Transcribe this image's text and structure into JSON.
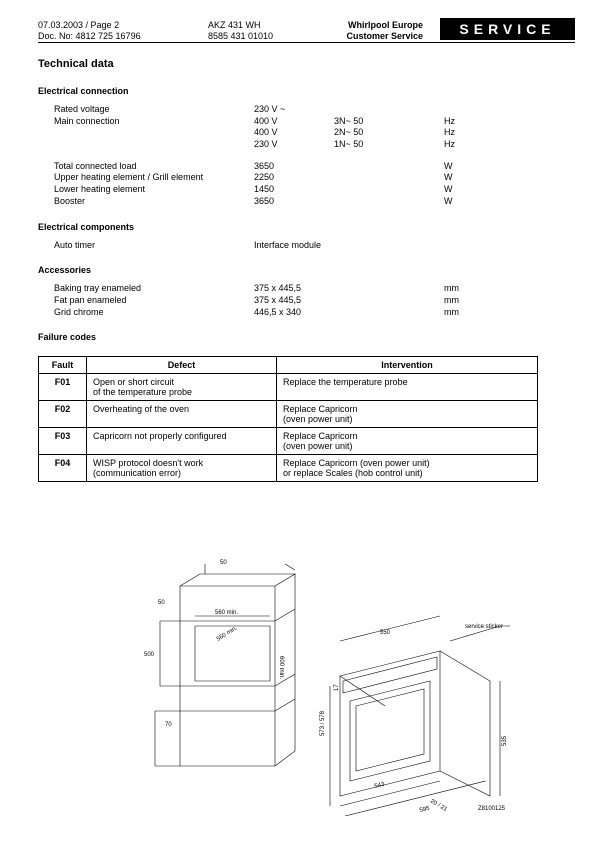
{
  "header": {
    "date_page": "07.03.2003 / Page 2",
    "doc_no": "Doc. No: 4812 725 16796",
    "model": "AKZ 431 WH",
    "code": "8585 431 01010",
    "company": "Whirlpool Europe",
    "dept": "Customer Service",
    "banner": "SERVICE"
  },
  "title": "Technical data",
  "sections": {
    "elec_conn_h": "Electrical connection",
    "elec_comp_h": "Electrical components",
    "accessories_h": "Accessories",
    "failure_h": "Failure codes"
  },
  "elec_conn": [
    {
      "label": "Rated voltage",
      "v1": "230 V ~",
      "v2": "",
      "u": ""
    },
    {
      "label": "Main connection",
      "v1": "400 V",
      "v2": "3N~ 50",
      "u": "Hz"
    },
    {
      "label": "",
      "v1": "400 V",
      "v2": "2N~ 50",
      "u": "Hz"
    },
    {
      "label": "",
      "v1": "230 V",
      "v2": "1N~ 50",
      "u": "Hz"
    }
  ],
  "loads": [
    {
      "label": "Total connected load",
      "v1": "3650",
      "v2": "",
      "u": "W"
    },
    {
      "label": "Upper heating element / Grill element",
      "v1": "2250",
      "v2": "",
      "u": "W"
    },
    {
      "label": "Lower heating element",
      "v1": "1450",
      "v2": "",
      "u": "W"
    },
    {
      "label": "Booster",
      "v1": "3650",
      "v2": "",
      "u": "W"
    }
  ],
  "elec_comp": [
    {
      "label": "Auto timer",
      "v1": "Interface module",
      "v2": "",
      "u": ""
    }
  ],
  "accessories": [
    {
      "label": "Baking tray enameled",
      "v1": "375 x 445,5",
      "v2": "",
      "u": "mm"
    },
    {
      "label": "Fat pan enameled",
      "v1": "375 x 445,5",
      "v2": "",
      "u": "mm"
    },
    {
      "label": "Grid chrome",
      "v1": "446,5 x 340",
      "v2": "",
      "u": "mm"
    }
  ],
  "ftable_head": {
    "fault": "Fault",
    "defect": "Defect",
    "intervention": "Intervention"
  },
  "faults": [
    {
      "code": "F01",
      "defect": "Open or short circuit\nof the temperature probe",
      "intervention": "Replace the temperature probe"
    },
    {
      "code": "F02",
      "defect": "Overheating of the oven",
      "intervention": "Replace Capricorn\n(oven power unit)"
    },
    {
      "code": "F03",
      "defect": "Capricorn not properly configured",
      "intervention": "Replace Capricorn\n(oven power unit)"
    },
    {
      "code": "F04",
      "defect": "WISP protocol doesn't work\n(communication error)",
      "intervention": "Replace Capricorn (oven power unit)\nor replace Scales (hob control unit)"
    }
  ],
  "diagram": {
    "labels": {
      "d50t": "50",
      "d50l": "50",
      "d500": "500",
      "d70": "70",
      "d560a": "560 min.",
      "d560b": "560 min.",
      "d600": "600 min.",
      "sticker": "service sticker",
      "d550": "550",
      "d573": "573 / 578",
      "d17": "17",
      "d535": "535",
      "d543": "543",
      "d20": "20 / 21",
      "d595": "595",
      "ref": "Z8100125"
    }
  }
}
